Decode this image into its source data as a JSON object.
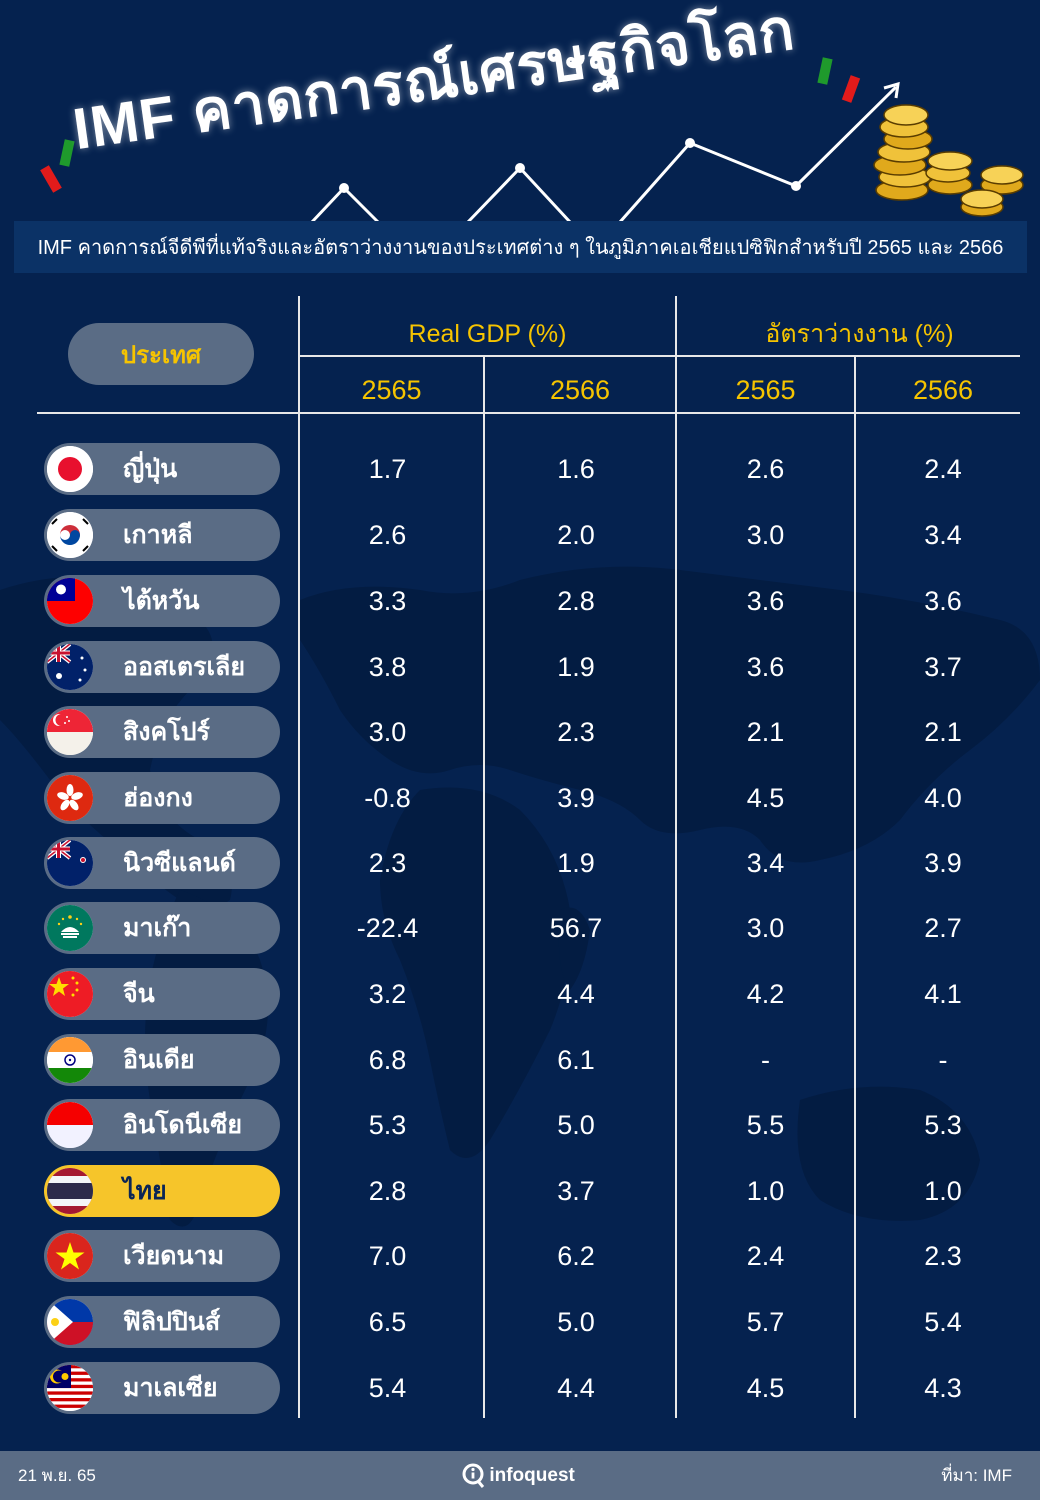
{
  "header": {
    "title": "IMF คาดการณ์เศรษฐกิจโลก",
    "subtitle": "IMF คาดการณ์จีดีพีที่แท้จริงและอัตราว่างงานของประเทศต่าง ๆ ในภูมิภาคเอเชียแปซิฟิกสำหรับปี 2565 และ 2566",
    "decoration": [
      "line-chart-arrow-icon",
      "gold-coins-icon"
    ],
    "accent_colors": {
      "green": "#1f9a2c",
      "red": "#e21b1b"
    }
  },
  "table": {
    "country_header": "ประเทศ",
    "groups": [
      {
        "label": "Real GDP (%)",
        "years": [
          "2565",
          "2566"
        ]
      },
      {
        "label": "อัตราว่างงาน (%)",
        "years": [
          "2565",
          "2566"
        ]
      }
    ],
    "rows": [
      {
        "country": "ญี่ปุ่น",
        "flag": "japan-flag-icon",
        "gdp_2565": "1.7",
        "gdp_2566": "1.6",
        "unemp_2565": "2.6",
        "unemp_2566": "2.4"
      },
      {
        "country": "เกาหลี",
        "flag": "south-korea-flag-icon",
        "gdp_2565": "2.6",
        "gdp_2566": "2.0",
        "unemp_2565": "3.0",
        "unemp_2566": "3.4"
      },
      {
        "country": "ไต้หวัน",
        "flag": "taiwan-flag-icon",
        "gdp_2565": "3.3",
        "gdp_2566": "2.8",
        "unemp_2565": "3.6",
        "unemp_2566": "3.6"
      },
      {
        "country": "ออสเตรเลีย",
        "flag": "australia-flag-icon",
        "gdp_2565": "3.8",
        "gdp_2566": "1.9",
        "unemp_2565": "3.6",
        "unemp_2566": "3.7"
      },
      {
        "country": "สิงคโปร์",
        "flag": "singapore-flag-icon",
        "gdp_2565": "3.0",
        "gdp_2566": "2.3",
        "unemp_2565": "2.1",
        "unemp_2566": "2.1"
      },
      {
        "country": "ฮ่องกง",
        "flag": "hong-kong-flag-icon",
        "gdp_2565": "-0.8",
        "gdp_2566": "3.9",
        "unemp_2565": "4.5",
        "unemp_2566": "4.0"
      },
      {
        "country": "นิวซีแลนด์",
        "flag": "new-zealand-flag-icon",
        "gdp_2565": "2.3",
        "gdp_2566": "1.9",
        "unemp_2565": "3.4",
        "unemp_2566": "3.9"
      },
      {
        "country": "มาเก๊า",
        "flag": "macau-flag-icon",
        "gdp_2565": "-22.4",
        "gdp_2566": "56.7",
        "unemp_2565": "3.0",
        "unemp_2566": "2.7"
      },
      {
        "country": "จีน",
        "flag": "china-flag-icon",
        "gdp_2565": "3.2",
        "gdp_2566": "4.4",
        "unemp_2565": "4.2",
        "unemp_2566": "4.1"
      },
      {
        "country": "อินเดีย",
        "flag": "india-flag-icon",
        "gdp_2565": "6.8",
        "gdp_2566": "6.1",
        "unemp_2565": "-",
        "unemp_2566": "-"
      },
      {
        "country": "อินโดนีเซีย",
        "flag": "indonesia-flag-icon",
        "gdp_2565": "5.3",
        "gdp_2566": "5.0",
        "unemp_2565": "5.5",
        "unemp_2566": "5.3"
      },
      {
        "country": "ไทย",
        "flag": "thailand-flag-icon",
        "highlight": true,
        "gdp_2565": "2.8",
        "gdp_2566": "3.7",
        "unemp_2565": "1.0",
        "unemp_2566": "1.0"
      },
      {
        "country": "เวียดนาม",
        "flag": "vietnam-flag-icon",
        "gdp_2565": "7.0",
        "gdp_2566": "6.2",
        "unemp_2565": "2.4",
        "unemp_2566": "2.3"
      },
      {
        "country": "ฟิลิปปินส์",
        "flag": "philippines-flag-icon",
        "gdp_2565": "6.5",
        "gdp_2566": "5.0",
        "unemp_2565": "5.7",
        "unemp_2566": "5.4"
      },
      {
        "country": "มาเลเซีย",
        "flag": "malaysia-flag-icon",
        "gdp_2565": "5.4",
        "gdp_2566": "4.4",
        "unemp_2565": "4.5",
        "unemp_2566": "4.3"
      }
    ]
  },
  "footer": {
    "date": "21 พ.ย. 65",
    "brand": "infoquest",
    "source": "ที่มา: IMF"
  },
  "colors": {
    "background": "#05224f",
    "pill": "#5a6c85",
    "highlight": "#f6c52a",
    "header_text": "#f6c400"
  }
}
